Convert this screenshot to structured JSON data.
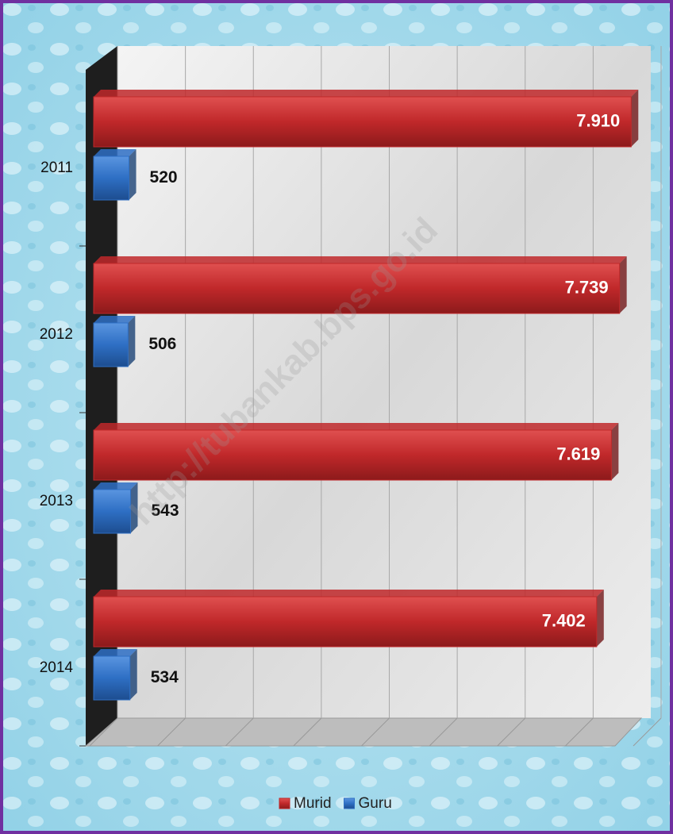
{
  "chart_data": {
    "type": "bar",
    "orientation": "horizontal",
    "categories": [
      "2011",
      "2012",
      "2013",
      "2014"
    ],
    "series": [
      {
        "name": "Murid",
        "color": "#c0282a",
        "values": [
          7910,
          7739,
          7619,
          7402
        ],
        "value_labels": [
          "7.910",
          "7.739",
          "7.619",
          "7.402"
        ]
      },
      {
        "name": "Guru",
        "color": "#2e6fc4",
        "values": [
          520,
          506,
          543,
          534
        ]
      }
    ],
    "xlim": [
      0,
      8000
    ],
    "xticks": [
      0,
      1000,
      2000,
      3000,
      4000,
      5000,
      6000,
      7000,
      8000
    ],
    "grid": true,
    "legend": "bottom",
    "watermark": "http://tubankab.bps.go.id"
  }
}
